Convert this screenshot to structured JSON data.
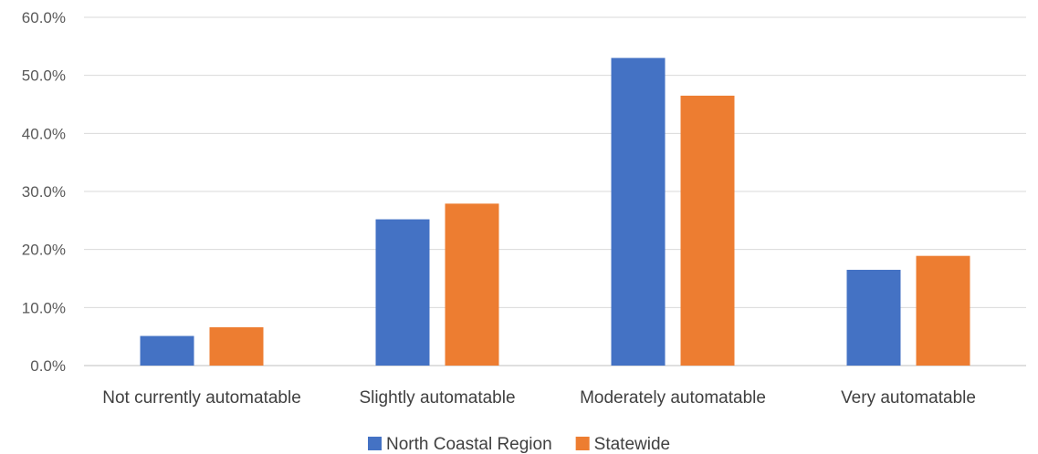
{
  "chart_data": {
    "type": "bar",
    "categories": [
      "Not currently automatable",
      "Slightly automatable",
      "Moderately automatable",
      "Very automatable"
    ],
    "series": [
      {
        "name": "North Coastal Region",
        "color": "#4472C4",
        "values": [
          5.1,
          25.2,
          53.0,
          16.5
        ]
      },
      {
        "name": "Statewide",
        "color": "#ED7D31",
        "values": [
          6.6,
          27.9,
          46.5,
          18.9
        ]
      }
    ],
    "ylim": [
      0,
      60
    ],
    "yticks": [
      0,
      10,
      20,
      30,
      40,
      50,
      60
    ],
    "ytick_labels": [
      "0.0%",
      "10.0%",
      "20.0%",
      "30.0%",
      "40.0%",
      "50.0%",
      "60.0%"
    ],
    "grid": true,
    "legend_position": "bottom",
    "title": "",
    "xlabel": "",
    "ylabel": ""
  }
}
